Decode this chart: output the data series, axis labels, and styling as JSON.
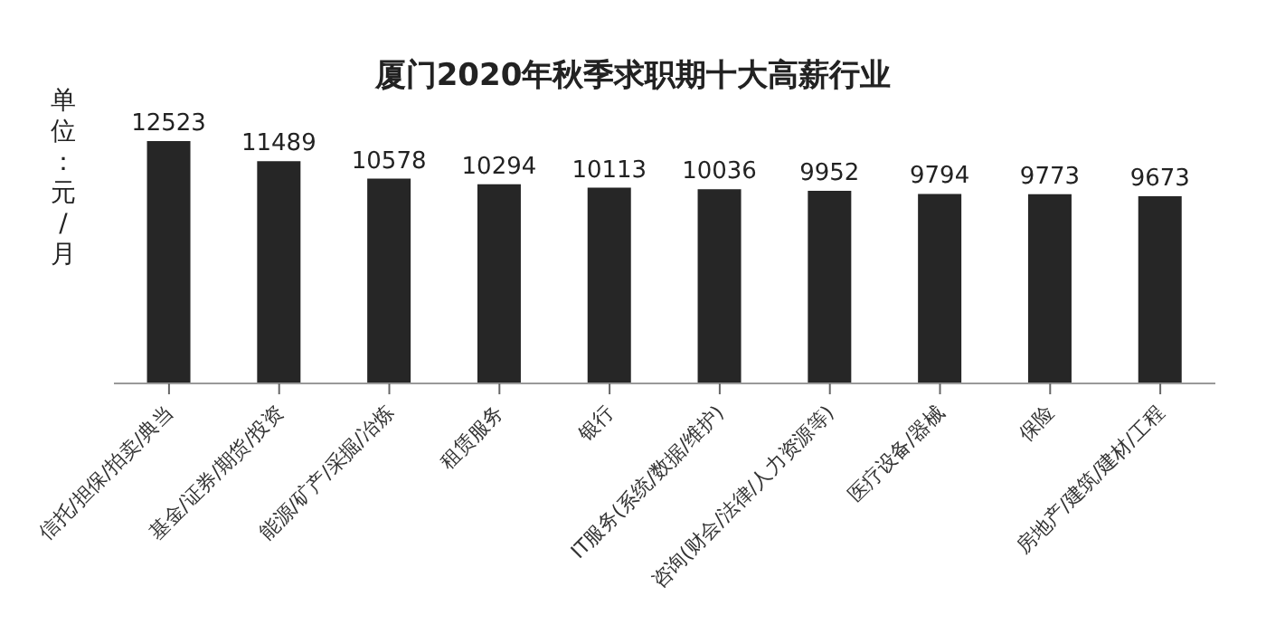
{
  "chart_data": {
    "type": "bar",
    "title": "厦门2020年秋季求职期十大高薪行业",
    "ylabel": "单位：元/月",
    "categories": [
      "信托/担保/拍卖/典当",
      "基金/证券/期货/投资",
      "能源/矿产/采掘/冶炼",
      "租赁服务",
      "银行",
      "IT服务(系统/数据/维护)",
      "咨询(财会/法律/人力资源等)",
      "医疗设备/器械",
      "保险",
      "房地产/建筑/建材/工程"
    ],
    "values": [
      12523,
      11489,
      10578,
      10294,
      10113,
      10036,
      9952,
      9794,
      9773,
      9673
    ],
    "color": "#262626",
    "data_labels": true,
    "tick_labels": "x"
  }
}
